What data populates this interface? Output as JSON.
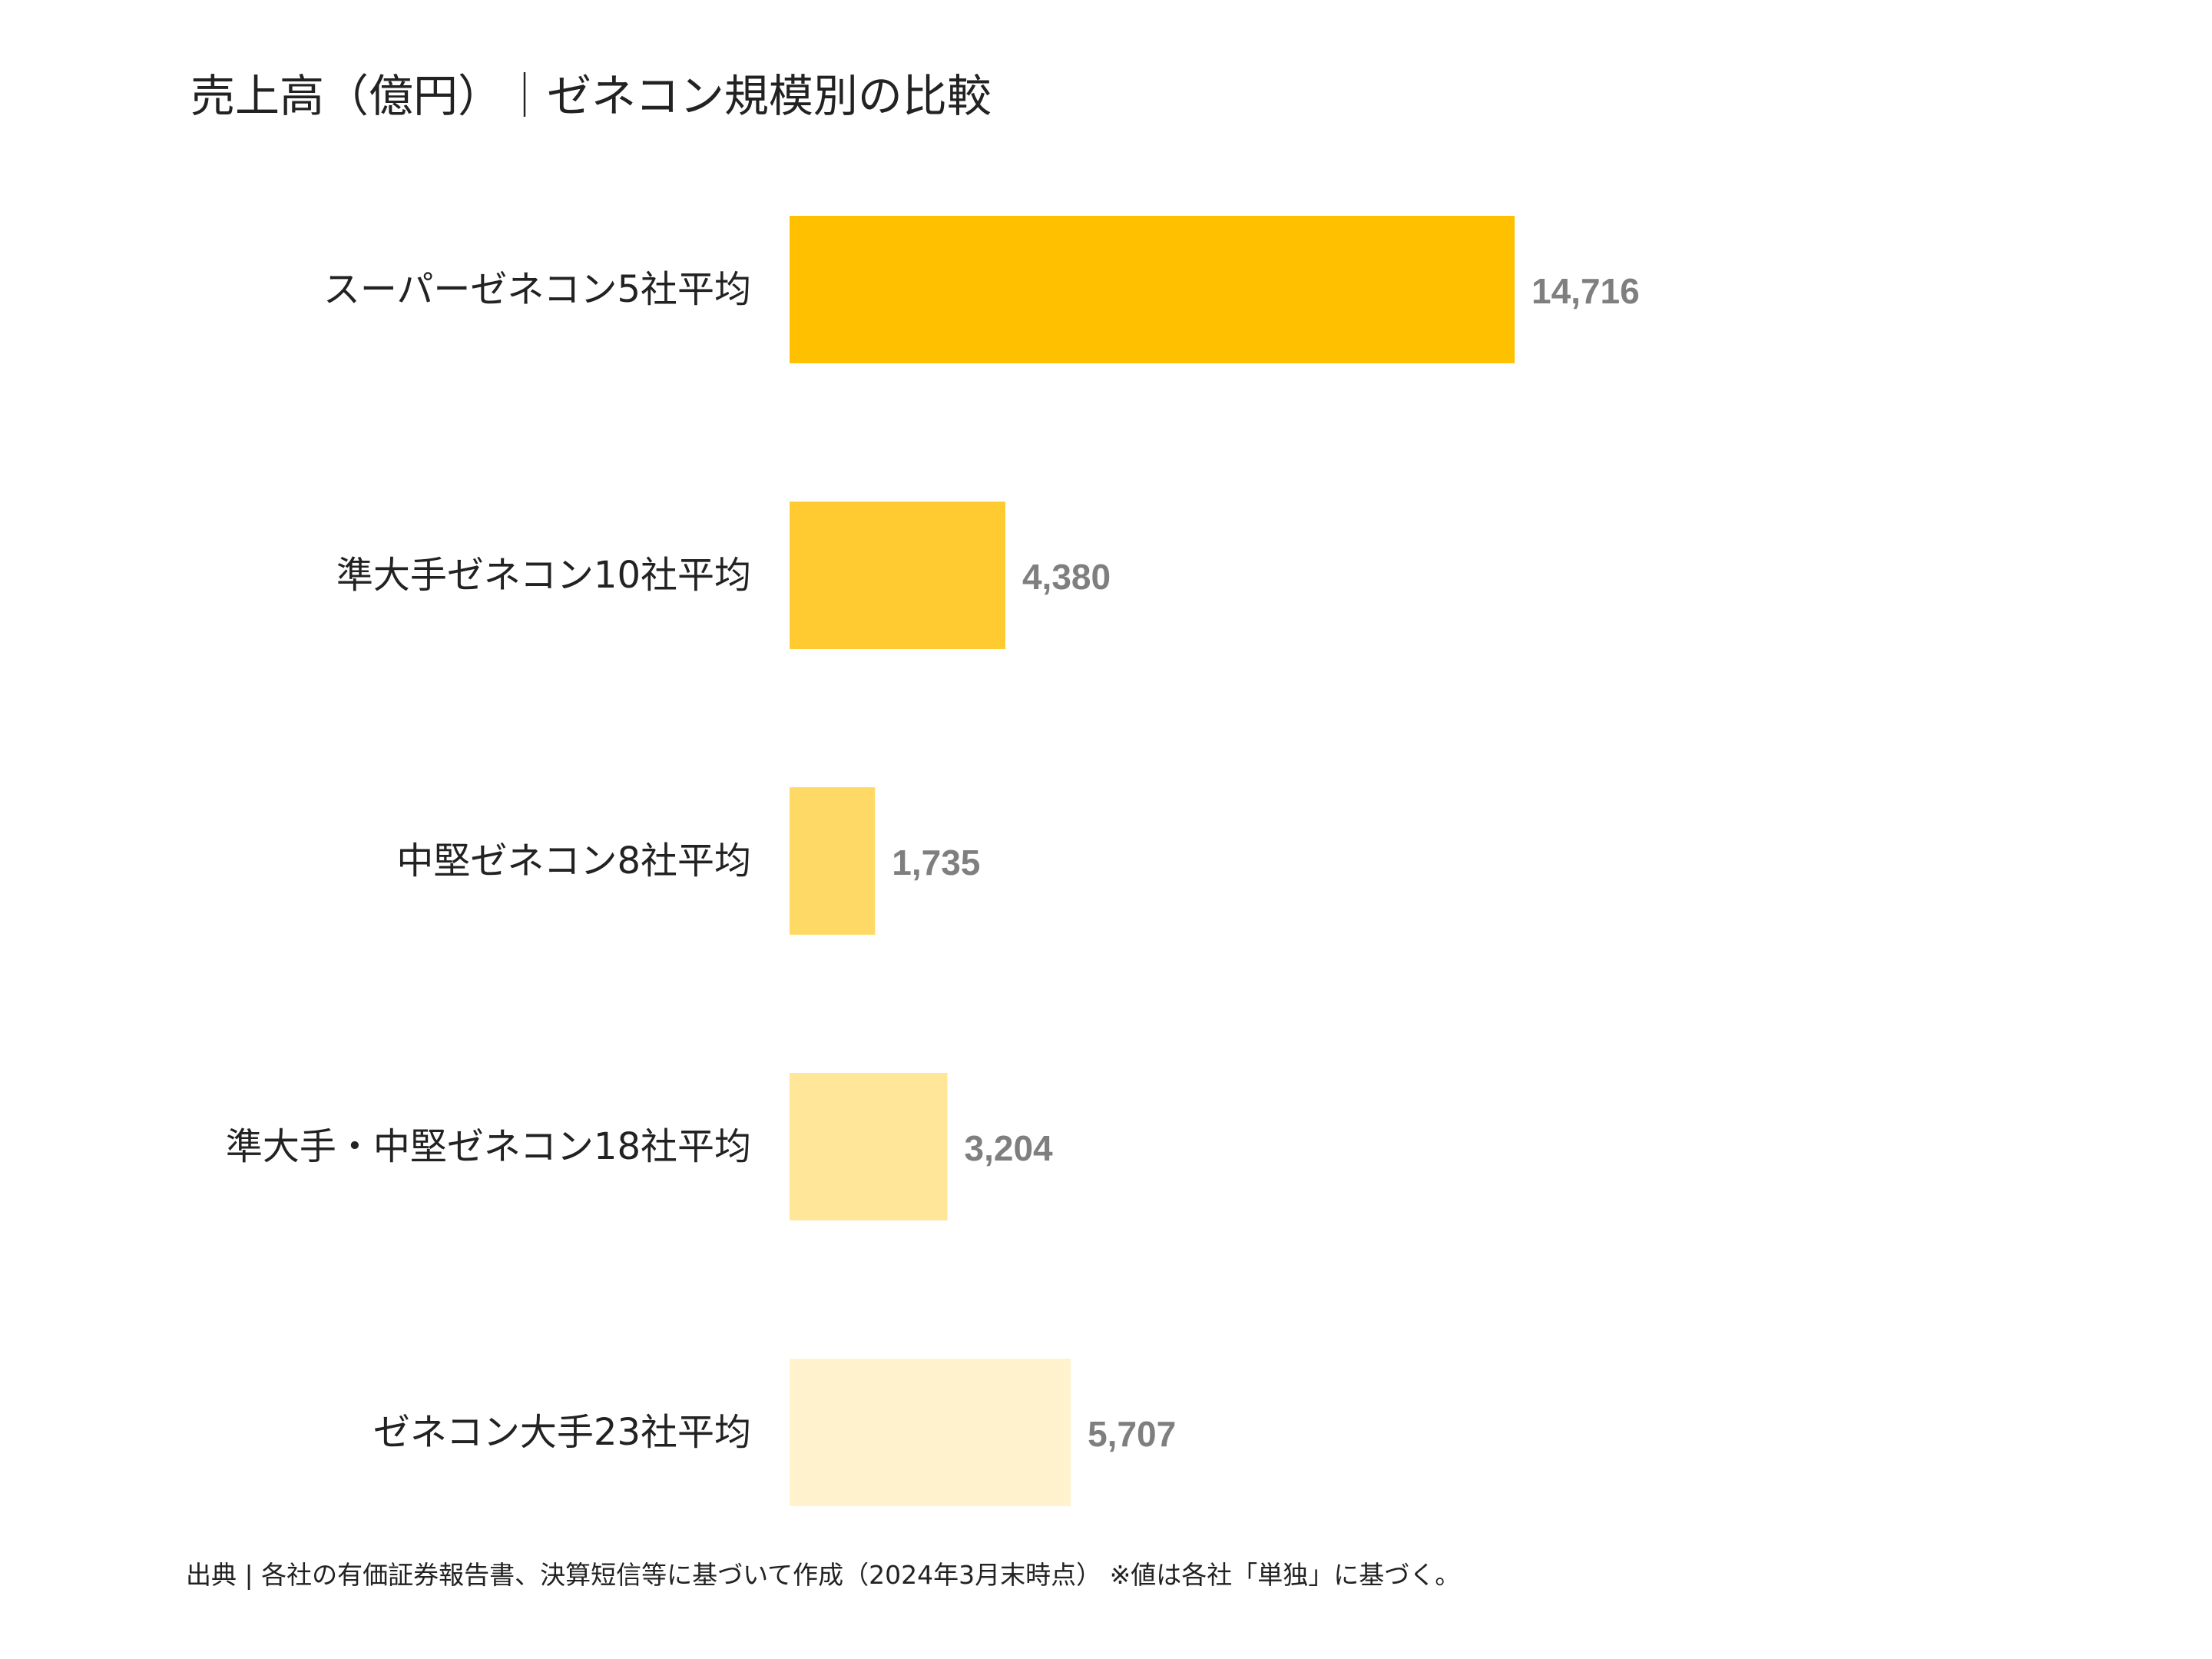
{
  "chart_data": {
    "type": "bar",
    "orientation": "horizontal",
    "title": "売上高（億円）｜ゼネコン規模別の比較",
    "categories": [
      "スーパーゼネコン5社平均",
      "準大手ゼネコン10社平均",
      "中堅ゼネコン8社平均",
      "準大手・中堅ゼネコン18社平均",
      "ゼネコン大手23社平均"
    ],
    "values": [
      14716,
      4380,
      1735,
      3204,
      5707
    ],
    "value_labels": [
      "14,716",
      "4,380",
      "1,735",
      "3,204",
      "5,707"
    ],
    "bar_colors": [
      "#FFC000",
      "#FFCB31",
      "#FFD966",
      "#FFE699",
      "#FFF2CC"
    ],
    "value_label_color": "#7F7F7F",
    "xlim": [
      0,
      14716
    ],
    "grid": false,
    "legend": "none"
  },
  "footer": {
    "source": "出典 | 各社の有価証券報告書、決算短信等に基づいて作成（2024年3月末時点） ※値は各社「単独」に基づく。"
  }
}
